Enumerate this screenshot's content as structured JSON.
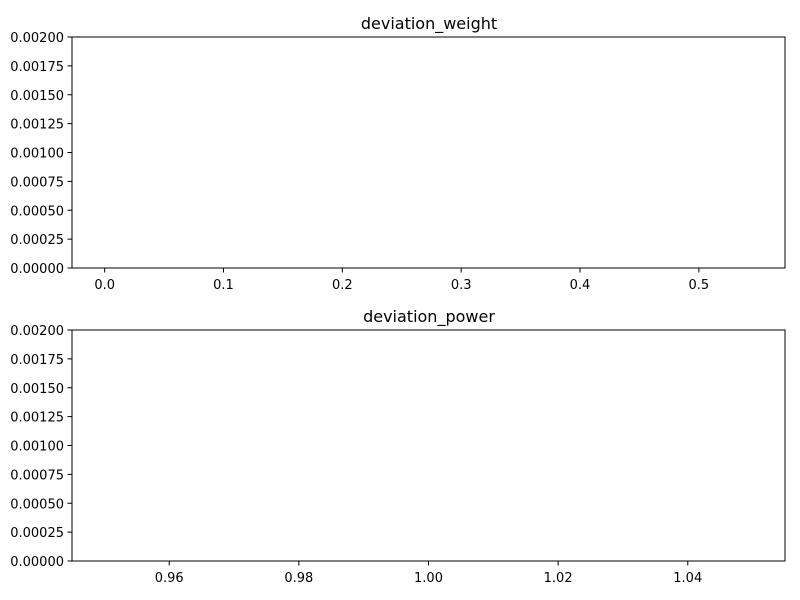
{
  "chart_data": [
    {
      "type": "line",
      "title": "deviation_weight",
      "xlabel": "",
      "ylabel": "",
      "xlim": [
        -0.0275,
        0.5725
      ],
      "ylim": [
        0,
        0.002
      ],
      "x_ticks": [
        0.0,
        0.1,
        0.2,
        0.3,
        0.4,
        0.5
      ],
      "x_tick_labels": [
        "0.0",
        "0.1",
        "0.2",
        "0.3",
        "0.4",
        "0.5"
      ],
      "y_ticks": [
        0,
        0.00025,
        0.0005,
        0.00075,
        0.001,
        0.00125,
        0.0015,
        0.00175,
        0.002
      ],
      "y_tick_labels": [
        "0.00000",
        "0.00025",
        "0.00050",
        "0.00075",
        "0.00100",
        "0.00125",
        "0.00150",
        "0.00175",
        "0.00200"
      ],
      "grid": false,
      "series": []
    },
    {
      "type": "line",
      "title": "deviation_power",
      "xlabel": "",
      "ylabel": "",
      "xlim": [
        0.945,
        1.055
      ],
      "ylim": [
        0,
        0.002
      ],
      "x_ticks": [
        0.96,
        0.98,
        1.0,
        1.02,
        1.04
      ],
      "x_tick_labels": [
        "0.96",
        "0.98",
        "1.00",
        "1.02",
        "1.04"
      ],
      "y_ticks": [
        0,
        0.00025,
        0.0005,
        0.00075,
        0.001,
        0.00125,
        0.0015,
        0.00175,
        0.002
      ],
      "y_tick_labels": [
        "0.00000",
        "0.00025",
        "0.00050",
        "0.00075",
        "0.00100",
        "0.00125",
        "0.00150",
        "0.00175",
        "0.00200"
      ],
      "grid": false,
      "series": []
    }
  ]
}
